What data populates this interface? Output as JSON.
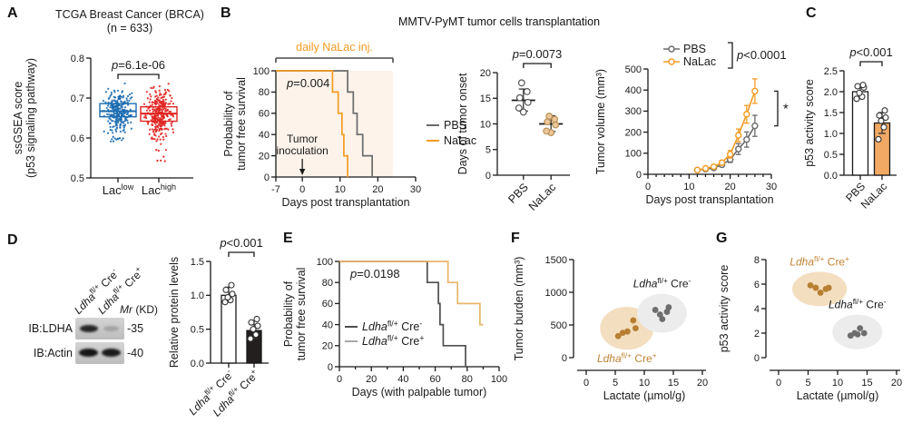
{
  "panels": {
    "A": "A",
    "B": "B",
    "C": "C",
    "D": "D",
    "E": "E",
    "F": "F",
    "G": "G"
  },
  "titles": {
    "B": "MMTV-PyMT tumor cells transplantation"
  },
  "chart_data": [
    {
      "id": "A",
      "panel": "A",
      "type": "box",
      "title": "TCGA Breast Cancer (BRCA)",
      "subtitle": "(n = 633)",
      "ylabel_line1": "ssGSEA score",
      "ylabel_line2": "(p53 signaling pathway)",
      "ylim": [
        0.5,
        0.8
      ],
      "yticks": [
        "0.5",
        "0.6",
        "0.7",
        "0.8"
      ],
      "pvalue": "*p*=6.1e-06",
      "groups": [
        {
          "label": "Lac^{low}",
          "color": "#1b6cb0",
          "median": 0.667,
          "q1": 0.653,
          "q3": 0.686,
          "scatter_center": 0.665,
          "scatter_sd": 0.026,
          "scatter_min": 0.59,
          "scatter_max": 0.75,
          "n_points": 280,
          "tail": {
            "n": 5,
            "from": 0.59,
            "to": 0.605
          }
        },
        {
          "label": "Lac^{high}",
          "color": "#e02420",
          "median": 0.661,
          "q1": 0.642,
          "q3": 0.678,
          "scatter_center": 0.66,
          "scatter_sd": 0.03,
          "scatter_min": 0.545,
          "scatter_max": 0.77,
          "n_points": 300,
          "tail": {
            "n": 9,
            "from": 0.54,
            "to": 0.61
          }
        }
      ]
    },
    {
      "id": "B1",
      "panel": "B",
      "type": "km",
      "xlabel": "Days post transplantation",
      "ylabel_line1": "Probability of",
      "ylabel_line2": "tumor free survival",
      "xlim": [
        -7,
        30
      ],
      "xticks": [
        -7,
        0,
        10,
        20,
        30
      ],
      "ylim": [
        0,
        100
      ],
      "yticks": [
        0,
        20,
        40,
        60,
        80,
        100
      ],
      "pvalue": "*p*=0.004",
      "shade": {
        "from": -7,
        "to": 24,
        "color": "#fdf3ea"
      },
      "top_bracket": {
        "label": "daily NaLac inj.",
        "from": -7,
        "to": 24,
        "label_color": "#F59B22",
        "line_color": "#4a4a4a"
      },
      "annotation": {
        "line1": "Tumor",
        "line2": "inoculation",
        "x": 0
      },
      "legend_pos": "right",
      "series": [
        {
          "name": "PBS",
          "color": "#6b6b6b",
          "start_y": 100,
          "drops": [
            [
              12,
              80
            ],
            [
              13.5,
              60
            ],
            [
              14.5,
              40
            ],
            [
              16,
              20
            ],
            [
              18.5,
              0
            ]
          ]
        },
        {
          "name": "NaLac",
          "color": "#F59B22",
          "start_y": 100,
          "drops": [
            [
              8,
              80
            ],
            [
              9.5,
              60
            ],
            [
              10.5,
              40
            ],
            [
              11,
              20
            ],
            [
              12,
              0
            ]
          ]
        }
      ]
    },
    {
      "id": "B2",
      "panel": "B",
      "type": "dot",
      "ylabel": "Days of tumor onset",
      "ylim": [
        0,
        20
      ],
      "yticks": [
        0,
        5,
        10,
        15,
        20
      ],
      "pvalue": "*p*=0.0073",
      "groups": [
        {
          "label": "PBS",
          "fill": "#ffffff",
          "stroke": "#555555",
          "values": [
            12.3,
            13.1,
            14.2,
            15.1,
            16.3,
            18.0
          ],
          "mean": 14.6,
          "sd_low": 12.5,
          "sd_high": 16.8
        },
        {
          "label": "NaLac",
          "fill": "#ebc79a",
          "stroke": "#b98f55",
          "values": [
            8.3,
            8.6,
            9.8,
            10.4,
            10.9,
            11.5
          ],
          "mean": 10.0,
          "sd_low": 8.5,
          "sd_high": 11.6
        }
      ]
    },
    {
      "id": "B3",
      "panel": "B",
      "type": "line",
      "xlabel": "Days post transplantation",
      "ylabel": "Tumor volume (mm³)",
      "xlim": [
        0,
        30
      ],
      "xticks": [
        0,
        10,
        20,
        30
      ],
      "xminor": 2,
      "ylim": [
        0,
        500
      ],
      "yticks": [
        0,
        100,
        200,
        300,
        400,
        500
      ],
      "pvalue": "*p*<0.0001",
      "sig_star": "*",
      "x": [
        12,
        14,
        16,
        18,
        20,
        22,
        24,
        26
      ],
      "series": [
        {
          "name": "PBS",
          "color": "#6b6b6b",
          "values": [
            20,
            25,
            30,
            45,
            70,
            120,
            165,
            230
          ],
          "errors": [
            4,
            5,
            6,
            9,
            14,
            26,
            36,
            50
          ]
        },
        {
          "name": "NaLac",
          "color": "#F59B22",
          "values": [
            20,
            28,
            36,
            55,
            95,
            185,
            285,
            395
          ],
          "errors": [
            4,
            6,
            8,
            11,
            18,
            30,
            42,
            58
          ]
        }
      ]
    },
    {
      "id": "C",
      "panel": "C",
      "type": "bar",
      "ylabel": "p53 activity score",
      "ylim": [
        0,
        2.5
      ],
      "yticks": [
        "0.0",
        "0.5",
        "1.0",
        "1.5",
        "2.0",
        "2.5"
      ],
      "pvalue": "*p*<0.001",
      "groups": [
        {
          "label": "PBS",
          "fill": "#ffffff",
          "value": 2.0,
          "sd_low": 1.83,
          "sd_high": 2.16,
          "dots": [
            1.83,
            1.88,
            1.97,
            2.1,
            2.13,
            2.16
          ]
        },
        {
          "label": "NaLac",
          "fill": "#f2a963",
          "value": 1.25,
          "sd_low": 1.0,
          "sd_high": 1.5,
          "dots": [
            0.86,
            1.15,
            1.3,
            1.38,
            1.43,
            1.55
          ]
        }
      ]
    },
    {
      "id": "D_blot",
      "panel": "D",
      "type": "blot",
      "lane_labels": [
        "*Ldha*^{fl/+} Cre^{-}",
        "*Ldha*^{fl/+} Cre^{+}"
      ],
      "mr_label": "*Mr* (KD)",
      "rows": [
        {
          "label": "IB:LDHA",
          "mw": "-35"
        },
        {
          "label": "IB:Actin",
          "mw": "-40"
        }
      ]
    },
    {
      "id": "D2",
      "panel": "D",
      "type": "bar",
      "ylabel": "Relative protein levels",
      "ylim": [
        0,
        1.5
      ],
      "yticks": [
        "0.0",
        "0.5",
        "1.0",
        "1.5"
      ],
      "pvalue": "*p*<0.001",
      "groups": [
        {
          "label": "*Ldha*^{fl/+} Cre^{-}",
          "fill": "#ffffff",
          "value": 1.0,
          "sd_low": 0.9,
          "sd_high": 1.12,
          "dots": [
            0.9,
            0.93,
            0.97,
            1.02,
            1.08,
            1.15
          ]
        },
        {
          "label": "*Ldha*^{fl/+} Cre^{+}",
          "fill": "#231f1e",
          "value": 0.48,
          "sd_low": 0.37,
          "sd_high": 0.62,
          "dots": [
            0.36,
            0.42,
            0.5,
            0.55,
            0.6,
            0.65
          ]
        }
      ]
    },
    {
      "id": "E",
      "panel": "E",
      "type": "km",
      "xlabel": "Days (with palpable tumor)",
      "ylabel_line1": "Probability of",
      "ylabel_line2": "tumor free survival",
      "xlim": [
        0,
        100
      ],
      "xticks": [
        0,
        20,
        40,
        60,
        80,
        100
      ],
      "xminor": 10,
      "ylim": [
        0,
        100
      ],
      "yticks": [
        0,
        20,
        40,
        60,
        80,
        100
      ],
      "pvalue": "*p*=0.0198",
      "legend_pos": "inside",
      "series": [
        {
          "name": "*Ldha*^{fl/+} Cre^{-}",
          "color": "#4f4f4f",
          "legend_color": "#4f4f4f",
          "start_y": 100,
          "drops": [
            [
              55,
              80
            ],
            [
              62,
              60
            ],
            [
              63,
              40
            ],
            [
              65,
              20
            ],
            [
              79,
              0
            ]
          ]
        },
        {
          "name": "*Ldha*^{fl/+} Cre^{+}",
          "color": "#e8b56a",
          "legend_color": "#a8a8a8",
          "start_y": 100,
          "drops": [
            [
              68,
              80
            ],
            [
              74,
              60
            ],
            [
              88,
              40
            ]
          ],
          "end_x": 90
        }
      ]
    },
    {
      "id": "F",
      "panel": "F",
      "type": "cluster",
      "xlabel": "Lactate (µmol/g)",
      "ylabel": "Tumor burden (mm³)",
      "xlim": [
        0,
        20
      ],
      "xticks": [
        0,
        5,
        10,
        15,
        20
      ],
      "ylim": [
        0,
        1500
      ],
      "yticks": [
        0,
        500,
        1000,
        1500
      ],
      "clusters": [
        {
          "label": "*Ldha*^{fl/+} Cre^{+}",
          "label_color": "#c08434",
          "dot_color": "#b87f33",
          "ellipse_fill": "#f3debf",
          "label_pos": "below",
          "points": [
            [
              5.5,
              330
            ],
            [
              6.3,
              380
            ],
            [
              7.1,
              400
            ],
            [
              8.1,
              570
            ],
            [
              8.5,
              450
            ]
          ]
        },
        {
          "label": "*Ldha*^{fl/+} Cre^{-}",
          "label_color": "#1a1a1a",
          "dot_color": "#6e6e6e",
          "ellipse_fill": "#ececec",
          "label_pos": "above",
          "points": [
            [
              11.9,
              730
            ],
            [
              12.7,
              660
            ],
            [
              13.1,
              590
            ],
            [
              13.9,
              700
            ],
            [
              14.2,
              770
            ]
          ]
        }
      ]
    },
    {
      "id": "G",
      "panel": "G",
      "type": "cluster",
      "xlabel": "Lactate (µmol/g)",
      "ylabel": "p53 activity score",
      "xlim": [
        0,
        20
      ],
      "xticks": [
        0,
        5,
        10,
        15,
        20
      ],
      "ylim": [
        0,
        8
      ],
      "yticks": [
        0,
        2,
        4,
        6,
        8
      ],
      "clusters": [
        {
          "label": "*Ldha*^{fl/+} Cre^{+}",
          "label_color": "#c08434",
          "dot_color": "#b87f33",
          "ellipse_fill": "#f3debf",
          "label_pos": "above",
          "points": [
            [
              5.4,
              5.9
            ],
            [
              6.3,
              5.7
            ],
            [
              7.1,
              5.3
            ],
            [
              8.0,
              5.6
            ],
            [
              8.5,
              5.7
            ]
          ]
        },
        {
          "label": "*Ldha*^{fl/+} Cre^{-}",
          "label_color": "#1a1a1a",
          "dot_color": "#6e6e6e",
          "ellipse_fill": "#ececec",
          "label_pos": "above",
          "points": [
            [
              12.2,
              1.8
            ],
            [
              12.9,
              2.0
            ],
            [
              13.4,
              1.9
            ],
            [
              13.8,
              2.4
            ],
            [
              14.5,
              2.0
            ]
          ]
        }
      ]
    }
  ]
}
